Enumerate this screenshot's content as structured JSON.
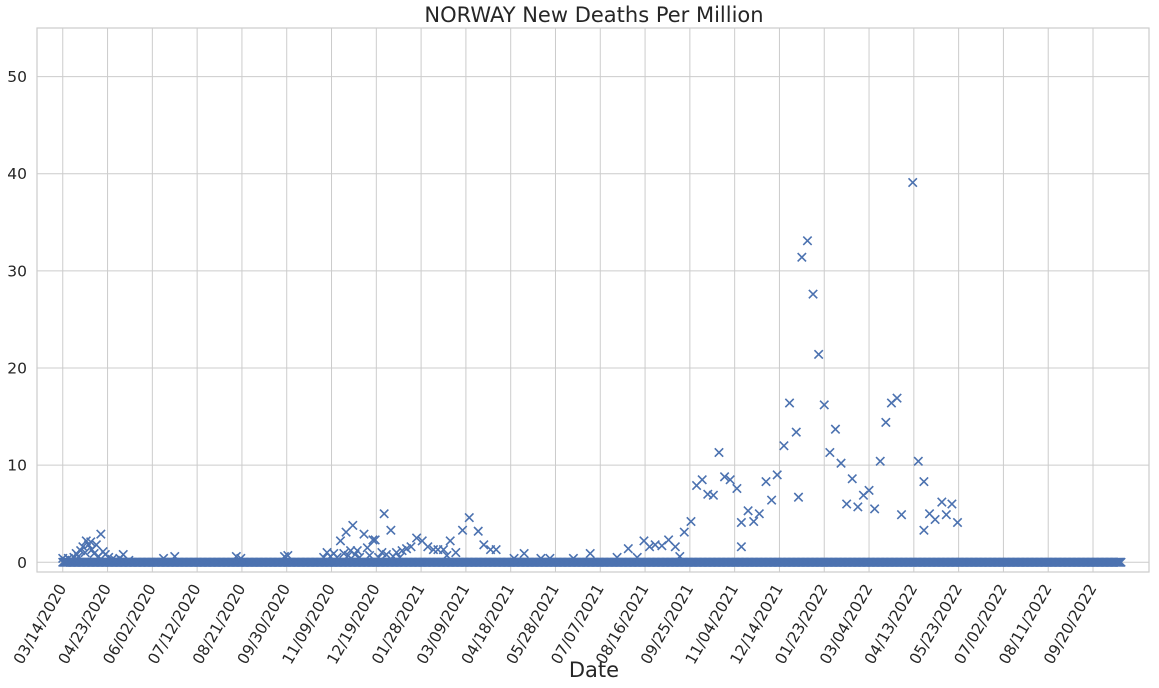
{
  "chart_data": {
    "type": "scatter",
    "title": "NORWAY   New Deaths Per Million",
    "xlabel": "Date",
    "ylabel": "",
    "x_type": "date",
    "xlim": [
      "2020-02-20",
      "2022-11-09"
    ],
    "ylim": [
      -1,
      55
    ],
    "grid": true,
    "marker": "x",
    "color": "#4c72b0",
    "x_ticks": [
      "03/14/2020",
      "04/23/2020",
      "06/02/2020",
      "07/12/2020",
      "08/21/2020",
      "09/30/2020",
      "11/09/2020",
      "12/19/2020",
      "01/28/2021",
      "03/09/2021",
      "04/18/2021",
      "05/28/2021",
      "07/07/2021",
      "08/16/2021",
      "09/25/2021",
      "11/04/2021",
      "12/14/2021",
      "01/23/2022",
      "03/04/2022",
      "04/13/2022",
      "05/23/2022",
      "07/02/2022",
      "08/11/2022",
      "09/20/2022"
    ],
    "y_ticks": [
      0,
      10,
      20,
      30,
      40,
      50
    ],
    "baseline": {
      "start": "2020-03-14",
      "end": "2022-10-15",
      "value": 0
    },
    "points": [
      {
        "x": "2020-03-14",
        "y": 0.4
      },
      {
        "x": "2020-03-16",
        "y": 0.2
      },
      {
        "x": "2020-03-19",
        "y": 0.4
      },
      {
        "x": "2020-03-22",
        "y": 0.2
      },
      {
        "x": "2020-03-24",
        "y": 0.5
      },
      {
        "x": "2020-03-26",
        "y": 0.9
      },
      {
        "x": "2020-03-28",
        "y": 0.6
      },
      {
        "x": "2020-03-30",
        "y": 1.2
      },
      {
        "x": "2020-04-01",
        "y": 1.6
      },
      {
        "x": "2020-04-03",
        "y": 1.0
      },
      {
        "x": "2020-04-04",
        "y": 2.2
      },
      {
        "x": "2020-04-06",
        "y": 1.8
      },
      {
        "x": "2020-04-08",
        "y": 2.1
      },
      {
        "x": "2020-04-09",
        "y": 1.3
      },
      {
        "x": "2020-04-11",
        "y": 0.9
      },
      {
        "x": "2020-04-13",
        "y": 1.8
      },
      {
        "x": "2020-04-15",
        "y": 0.6
      },
      {
        "x": "2020-04-17",
        "y": 2.9
      },
      {
        "x": "2020-04-19",
        "y": 1.1
      },
      {
        "x": "2020-04-21",
        "y": 0.8
      },
      {
        "x": "2020-04-24",
        "y": 0.5
      },
      {
        "x": "2020-04-27",
        "y": 0.3
      },
      {
        "x": "2020-04-30",
        "y": 0.2
      },
      {
        "x": "2020-05-04",
        "y": 0.4
      },
      {
        "x": "2020-05-07",
        "y": 0.8
      },
      {
        "x": "2020-05-12",
        "y": 0.2
      },
      {
        "x": "2020-06-12",
        "y": 0.4
      },
      {
        "x": "2020-06-22",
        "y": 0.6
      },
      {
        "x": "2020-08-16",
        "y": 0.6
      },
      {
        "x": "2020-08-20",
        "y": 0.4
      },
      {
        "x": "2020-09-28",
        "y": 0.6
      },
      {
        "x": "2020-10-01",
        "y": 0.7
      },
      {
        "x": "2020-11-02",
        "y": 0.5
      },
      {
        "x": "2020-11-05",
        "y": 1.0
      },
      {
        "x": "2020-11-08",
        "y": 0.6
      },
      {
        "x": "2020-11-11",
        "y": 0.9
      },
      {
        "x": "2020-11-14",
        "y": 0.5
      },
      {
        "x": "2020-11-17",
        "y": 2.2
      },
      {
        "x": "2020-11-20",
        "y": 0.9
      },
      {
        "x": "2020-11-22",
        "y": 3.1
      },
      {
        "x": "2020-11-24",
        "y": 0.7
      },
      {
        "x": "2020-11-26",
        "y": 1.2
      },
      {
        "x": "2020-11-28",
        "y": 3.8
      },
      {
        "x": "2020-11-30",
        "y": 0.8
      },
      {
        "x": "2020-12-02",
        "y": 1.2
      },
      {
        "x": "2020-12-04",
        "y": 0.5
      },
      {
        "x": "2020-12-08",
        "y": 2.9
      },
      {
        "x": "2020-12-11",
        "y": 1.5
      },
      {
        "x": "2020-12-13",
        "y": 0.7
      },
      {
        "x": "2020-12-16",
        "y": 2.3
      },
      {
        "x": "2020-12-18",
        "y": 2.3
      },
      {
        "x": "2020-12-21",
        "y": 0.5
      },
      {
        "x": "2020-12-24",
        "y": 1.0
      },
      {
        "x": "2020-12-26",
        "y": 5.0
      },
      {
        "x": "2020-12-28",
        "y": 0.8
      },
      {
        "x": "2021-01-01",
        "y": 3.3
      },
      {
        "x": "2021-01-03",
        "y": 0.6
      },
      {
        "x": "2021-01-06",
        "y": 1.0
      },
      {
        "x": "2021-01-09",
        "y": 0.5
      },
      {
        "x": "2021-01-11",
        "y": 1.2
      },
      {
        "x": "2021-01-15",
        "y": 1.4
      },
      {
        "x": "2021-01-19",
        "y": 1.6
      },
      {
        "x": "2021-01-24",
        "y": 2.5
      },
      {
        "x": "2021-01-29",
        "y": 2.2
      },
      {
        "x": "2021-02-03",
        "y": 1.6
      },
      {
        "x": "2021-02-08",
        "y": 1.3
      },
      {
        "x": "2021-02-12",
        "y": 1.3
      },
      {
        "x": "2021-02-17",
        "y": 1.3
      },
      {
        "x": "2021-02-20",
        "y": 0.7
      },
      {
        "x": "2021-02-23",
        "y": 2.2
      },
      {
        "x": "2021-02-28",
        "y": 1.0
      },
      {
        "x": "2021-03-06",
        "y": 3.3
      },
      {
        "x": "2021-03-12",
        "y": 4.6
      },
      {
        "x": "2021-03-20",
        "y": 3.2
      },
      {
        "x": "2021-03-25",
        "y": 1.8
      },
      {
        "x": "2021-03-31",
        "y": 1.3
      },
      {
        "x": "2021-04-05",
        "y": 1.3
      },
      {
        "x": "2021-04-21",
        "y": 0.4
      },
      {
        "x": "2021-04-30",
        "y": 0.9
      },
      {
        "x": "2021-05-15",
        "y": 0.4
      },
      {
        "x": "2021-05-23",
        "y": 0.4
      },
      {
        "x": "2021-06-13",
        "y": 0.4
      },
      {
        "x": "2021-06-28",
        "y": 0.9
      },
      {
        "x": "2021-07-22",
        "y": 0.5
      },
      {
        "x": "2021-08-01",
        "y": 1.4
      },
      {
        "x": "2021-08-09",
        "y": 0.5
      },
      {
        "x": "2021-08-15",
        "y": 2.2
      },
      {
        "x": "2021-08-20",
        "y": 1.6
      },
      {
        "x": "2021-08-25",
        "y": 1.8
      },
      {
        "x": "2021-08-31",
        "y": 1.7
      },
      {
        "x": "2021-09-06",
        "y": 2.3
      },
      {
        "x": "2021-09-12",
        "y": 1.6
      },
      {
        "x": "2021-09-16",
        "y": 0.6
      },
      {
        "x": "2021-09-20",
        "y": 3.1
      },
      {
        "x": "2021-09-26",
        "y": 4.2
      },
      {
        "x": "2021-10-01",
        "y": 7.9
      },
      {
        "x": "2021-10-06",
        "y": 8.5
      },
      {
        "x": "2021-10-11",
        "y": 7.0
      },
      {
        "x": "2021-10-16",
        "y": 6.9
      },
      {
        "x": "2021-10-21",
        "y": 11.3
      },
      {
        "x": "2021-10-26",
        "y": 8.8
      },
      {
        "x": "2021-10-31",
        "y": 8.5
      },
      {
        "x": "2021-11-06",
        "y": 7.6
      },
      {
        "x": "2021-11-10",
        "y": 4.1
      },
      {
        "x": "2021-11-10",
        "y": 1.6
      },
      {
        "x": "2021-11-16",
        "y": 5.3
      },
      {
        "x": "2021-11-21",
        "y": 4.2
      },
      {
        "x": "2021-11-26",
        "y": 5.0
      },
      {
        "x": "2021-12-02",
        "y": 8.3
      },
      {
        "x": "2021-12-07",
        "y": 6.4
      },
      {
        "x": "2021-12-12",
        "y": 9.0
      },
      {
        "x": "2021-12-18",
        "y": 12.0
      },
      {
        "x": "2021-12-23",
        "y": 16.4
      },
      {
        "x": "2021-12-29",
        "y": 13.4
      },
      {
        "x": "2021-12-31",
        "y": 6.7
      },
      {
        "x": "2022-01-03",
        "y": 31.4
      },
      {
        "x": "2022-01-08",
        "y": 33.1
      },
      {
        "x": "2022-01-13",
        "y": 27.6
      },
      {
        "x": "2022-01-18",
        "y": 21.4
      },
      {
        "x": "2022-01-23",
        "y": 16.2
      },
      {
        "x": "2022-01-28",
        "y": 11.3
      },
      {
        "x": "2022-02-02",
        "y": 13.7
      },
      {
        "x": "2022-02-07",
        "y": 10.2
      },
      {
        "x": "2022-02-12",
        "y": 6.0
      },
      {
        "x": "2022-02-17",
        "y": 8.6
      },
      {
        "x": "2022-02-22",
        "y": 5.7
      },
      {
        "x": "2022-02-27",
        "y": 6.9
      },
      {
        "x": "2022-03-04",
        "y": 7.4
      },
      {
        "x": "2022-03-09",
        "y": 5.5
      },
      {
        "x": "2022-03-14",
        "y": 10.4
      },
      {
        "x": "2022-03-19",
        "y": 14.4
      },
      {
        "x": "2022-03-24",
        "y": 16.4
      },
      {
        "x": "2022-03-29",
        "y": 16.9
      },
      {
        "x": "2022-04-02",
        "y": 4.9
      },
      {
        "x": "2022-04-12",
        "y": 39.1
      },
      {
        "x": "2022-04-17",
        "y": 10.4
      },
      {
        "x": "2022-04-22",
        "y": 3.3
      },
      {
        "x": "2022-04-22",
        "y": 8.3
      },
      {
        "x": "2022-04-27",
        "y": 5.0
      },
      {
        "x": "2022-05-02",
        "y": 4.4
      },
      {
        "x": "2022-05-08",
        "y": 6.2
      },
      {
        "x": "2022-05-12",
        "y": 4.9
      },
      {
        "x": "2022-05-17",
        "y": 6.0
      },
      {
        "x": "2022-05-22",
        "y": 4.1
      }
    ]
  }
}
